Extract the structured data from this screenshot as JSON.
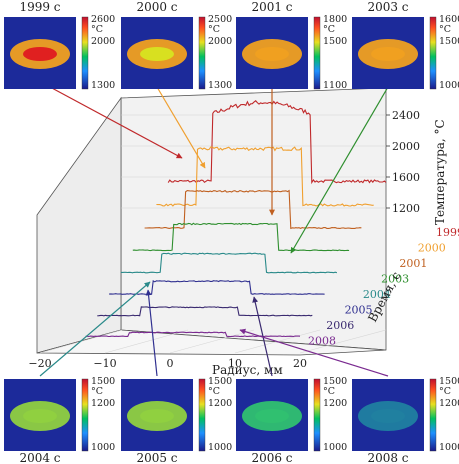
{
  "chart_data": {
    "type": "line",
    "layout": "3d-waterfall",
    "xlabel": "Радиус, мм",
    "ylabel": "Время, с",
    "zlabel": "Температура, °С",
    "x_ticks": [
      -20,
      -10,
      0,
      10,
      20
    ],
    "z_ticks": [
      1200,
      1600,
      2000,
      2400
    ],
    "xlim": [
      -20,
      20
    ],
    "zlim": [
      1000,
      2400
    ],
    "grid": true,
    "series": [
      {
        "name": "1999",
        "color": "#c0292b",
        "t": 1999,
        "baseline": 1250,
        "plateau": 2150,
        "peak": 2300,
        "half_width": 7.5,
        "noise": 60
      },
      {
        "name": "2000",
        "color": "#f0a030",
        "t": 2000,
        "baseline": 1200,
        "plateau": 1950,
        "peak": 1950,
        "half_width": 8,
        "noise": 45
      },
      {
        "name": "2001",
        "color": "#c06020",
        "t": 2001,
        "baseline": 1160,
        "plateau": 1650,
        "peak": 1650,
        "half_width": 8,
        "noise": 20
      },
      {
        "name": "2003",
        "color": "#2f8f2f",
        "t": 2003,
        "baseline": 1130,
        "plateau": 1480,
        "peak": 1480,
        "half_width": 8,
        "noise": 18
      },
      {
        "name": "2004",
        "color": "#2a8a8a",
        "t": 2004,
        "baseline": 1100,
        "plateau": 1350,
        "peak": 1350,
        "half_width": 8,
        "noise": 15
      },
      {
        "name": "2005",
        "color": "#303090",
        "t": 2005,
        "baseline": 1080,
        "plateau": 1250,
        "peak": 1250,
        "half_width": 7.5,
        "noise": 15
      },
      {
        "name": "2006",
        "color": "#3a2a70",
        "t": 2006,
        "baseline": 1060,
        "plateau": 1170,
        "peak": 1170,
        "half_width": 7.5,
        "noise": 12
      },
      {
        "name": "2008",
        "color": "#7a2a90",
        "t": 2008,
        "baseline": 1050,
        "plateau": 1100,
        "peak": 1100,
        "half_width": 7.5,
        "noise": 10
      }
    ]
  },
  "thermograms": [
    {
      "label": "1999 с",
      "scale": [
        "2600",
        "°C",
        "2000",
        "1300"
      ],
      "level": 1.0,
      "pos": "top"
    },
    {
      "label": "2000 с",
      "scale": [
        "2500",
        "°C",
        "2000",
        "1300"
      ],
      "level": 0.85,
      "pos": "top"
    },
    {
      "label": "2001 с",
      "scale": [
        "1800",
        "°C",
        "1500",
        "1100"
      ],
      "level": 0.7,
      "pos": "top"
    },
    {
      "label": "2003 с",
      "scale": [
        "1600",
        "°C",
        "1500",
        "1000"
      ],
      "level": 0.62,
      "pos": "top"
    },
    {
      "label": "2004 с",
      "scale": [
        "1500",
        "°C",
        "1200",
        "1000"
      ],
      "level": 0.55,
      "pos": "bottom"
    },
    {
      "label": "2005 с",
      "scale": [
        "1500",
        "°C",
        "1200",
        "1000"
      ],
      "level": 0.42,
      "pos": "bottom"
    },
    {
      "label": "2006 с",
      "scale": [
        "1500",
        "°C",
        "1200",
        "1000"
      ],
      "level": 0.35,
      "pos": "bottom"
    },
    {
      "label": "2008 с",
      "scale": [
        "1500",
        "°C",
        "1200",
        "1000"
      ],
      "level": 0.22,
      "pos": "bottom"
    }
  ]
}
